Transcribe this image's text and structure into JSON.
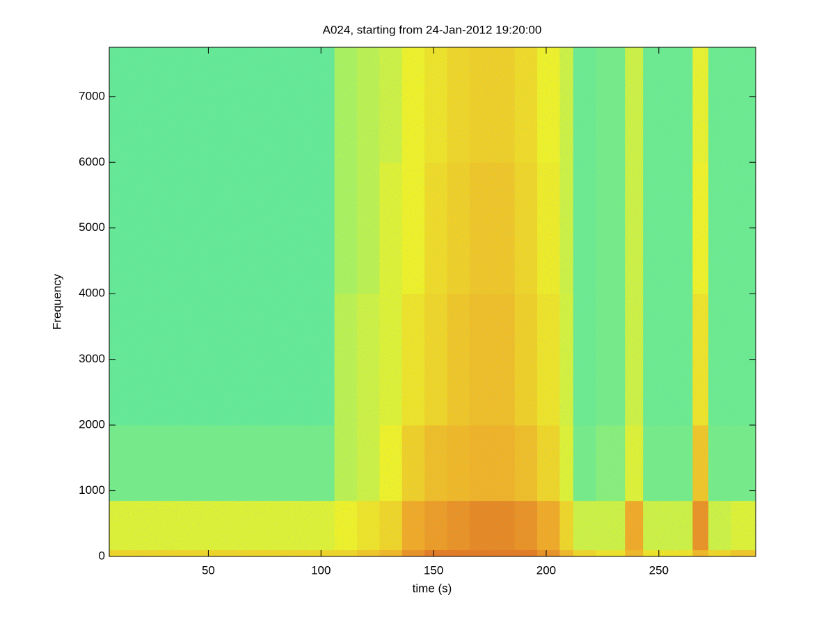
{
  "chart_data": {
    "type": "heatmap",
    "title": "A024, starting from 24-Jan-2012 19:20:00",
    "xlabel": "time (s)",
    "ylabel": "Frequency",
    "xlim": [
      6,
      293
    ],
    "ylim": [
      0,
      7750
    ],
    "xticks": [
      50,
      100,
      150,
      200,
      250
    ],
    "yticks": [
      0,
      1000,
      2000,
      3000,
      4000,
      5000,
      6000,
      7000
    ],
    "xbins": [
      6,
      16,
      26,
      36,
      46,
      56,
      66,
      76,
      86,
      96,
      106,
      116,
      126,
      136,
      146,
      156,
      166,
      176,
      186,
      196,
      206,
      212,
      222,
      235,
      243,
      253,
      265,
      272,
      282,
      293
    ],
    "ybins": [
      0,
      100,
      850,
      2000,
      4000,
      6000,
      7750
    ],
    "vlim": [
      0,
      1
    ],
    "colors": [
      "#3ee6b0",
      "#9cf466",
      "#f6f41e",
      "#f8a81c",
      "#d42a10"
    ],
    "values": [
      [
        0.6,
        0.45,
        0.15,
        0.1,
        0.1,
        0.1
      ],
      [
        0.6,
        0.45,
        0.15,
        0.1,
        0.1,
        0.1
      ],
      [
        0.6,
        0.45,
        0.15,
        0.1,
        0.1,
        0.1
      ],
      [
        0.6,
        0.45,
        0.15,
        0.1,
        0.1,
        0.1
      ],
      [
        0.6,
        0.45,
        0.15,
        0.1,
        0.1,
        0.1
      ],
      [
        0.6,
        0.45,
        0.15,
        0.1,
        0.1,
        0.1
      ],
      [
        0.6,
        0.45,
        0.15,
        0.1,
        0.1,
        0.1
      ],
      [
        0.6,
        0.45,
        0.15,
        0.1,
        0.1,
        0.1
      ],
      [
        0.6,
        0.45,
        0.15,
        0.1,
        0.1,
        0.1
      ],
      [
        0.6,
        0.45,
        0.15,
        0.1,
        0.1,
        0.1
      ],
      [
        0.6,
        0.5,
        0.35,
        0.35,
        0.3,
        0.3
      ],
      [
        0.65,
        0.55,
        0.4,
        0.4,
        0.35,
        0.35
      ],
      [
        0.7,
        0.6,
        0.5,
        0.45,
        0.45,
        0.4
      ],
      [
        0.8,
        0.75,
        0.62,
        0.55,
        0.5,
        0.5
      ],
      [
        0.85,
        0.78,
        0.68,
        0.6,
        0.58,
        0.55
      ],
      [
        0.85,
        0.8,
        0.7,
        0.65,
        0.62,
        0.6
      ],
      [
        0.85,
        0.82,
        0.72,
        0.68,
        0.65,
        0.62
      ],
      [
        0.85,
        0.82,
        0.72,
        0.68,
        0.65,
        0.62
      ],
      [
        0.85,
        0.8,
        0.68,
        0.62,
        0.6,
        0.58
      ],
      [
        0.8,
        0.75,
        0.6,
        0.55,
        0.52,
        0.5
      ],
      [
        0.7,
        0.6,
        0.45,
        0.42,
        0.4,
        0.4
      ],
      [
        0.6,
        0.4,
        0.15,
        0.12,
        0.12,
        0.12
      ],
      [
        0.55,
        0.4,
        0.2,
        0.15,
        0.15,
        0.15
      ],
      [
        0.7,
        0.75,
        0.45,
        0.4,
        0.4,
        0.4
      ],
      [
        0.55,
        0.4,
        0.15,
        0.12,
        0.12,
        0.12
      ],
      [
        0.55,
        0.4,
        0.15,
        0.12,
        0.12,
        0.12
      ],
      [
        0.7,
        0.8,
        0.65,
        0.55,
        0.5,
        0.48
      ],
      [
        0.6,
        0.4,
        0.15,
        0.12,
        0.12,
        0.12
      ],
      [
        0.65,
        0.45,
        0.15,
        0.12,
        0.12,
        0.12
      ]
    ]
  }
}
